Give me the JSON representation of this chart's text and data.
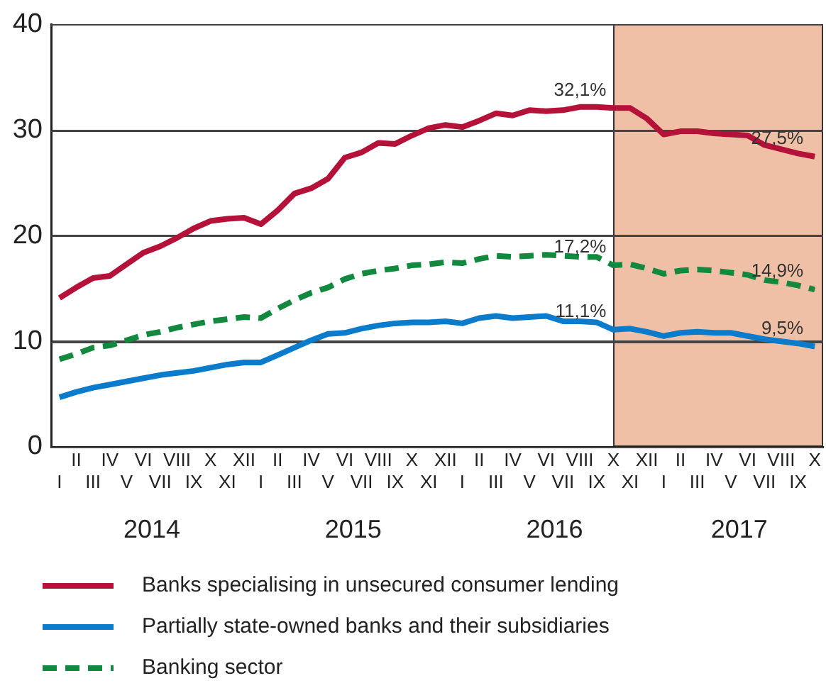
{
  "chart_data": {
    "type": "line",
    "categories": [
      "I",
      "II",
      "III",
      "IV",
      "V",
      "VI",
      "VII",
      "VIII",
      "IX",
      "X",
      "XI",
      "XII",
      "I",
      "II",
      "III",
      "IV",
      "V",
      "VI",
      "VII",
      "VIII",
      "IX",
      "X",
      "XI",
      "XII",
      "I",
      "II",
      "III",
      "IV",
      "V",
      "VI",
      "VII",
      "VIII",
      "IX",
      "X",
      "XI",
      "XII",
      "I",
      "II",
      "III",
      "IV",
      "V",
      "VI",
      "VII",
      "VIII",
      "IX",
      "X"
    ],
    "series": [
      {
        "name": "Banks specialising in unsecured consumer lending",
        "color": "#b5123a",
        "values": [
          14.1,
          15.1,
          16.0,
          16.2,
          17.3,
          18.4,
          19.0,
          19.8,
          20.7,
          21.4,
          21.6,
          21.7,
          21.1,
          22.4,
          24.0,
          24.5,
          25.4,
          27.4,
          27.9,
          28.8,
          28.7,
          29.5,
          30.2,
          30.5,
          30.3,
          30.9,
          31.6,
          31.4,
          31.9,
          31.8,
          31.9,
          32.2,
          32.2,
          32.1,
          32.1,
          31.1,
          29.6,
          29.9,
          29.9,
          29.7,
          29.6,
          29.5,
          28.6,
          28.2,
          27.8,
          27.5
        ],
        "value_labels": [
          null,
          null,
          null,
          null,
          null,
          null,
          null,
          null,
          null,
          null,
          null,
          null,
          null,
          null,
          null,
          null,
          null,
          null,
          null,
          null,
          null,
          null,
          null,
          null,
          null,
          null,
          null,
          null,
          null,
          null,
          null,
          null,
          null,
          "32,1%",
          null,
          null,
          null,
          null,
          null,
          null,
          null,
          null,
          null,
          null,
          null,
          "27,5%"
        ]
      },
      {
        "name": "Partially state-owned banks and their subsidiaries",
        "color": "#0a7ccb",
        "values": [
          4.7,
          5.2,
          5.6,
          5.9,
          6.2,
          6.5,
          6.8,
          7.0,
          7.2,
          7.5,
          7.8,
          8.0,
          8.0,
          8.7,
          9.4,
          10.1,
          10.7,
          10.8,
          11.2,
          11.5,
          11.7,
          11.8,
          11.8,
          11.9,
          11.7,
          12.2,
          12.4,
          12.2,
          12.3,
          12.4,
          11.9,
          11.9,
          11.8,
          11.1,
          11.2,
          10.9,
          10.5,
          10.8,
          10.9,
          10.8,
          10.8,
          10.5,
          10.2,
          10.0,
          9.8,
          9.5
        ],
        "value_labels": [
          null,
          null,
          null,
          null,
          null,
          null,
          null,
          null,
          null,
          null,
          null,
          null,
          null,
          null,
          null,
          null,
          null,
          null,
          null,
          null,
          null,
          null,
          null,
          null,
          null,
          null,
          null,
          null,
          null,
          null,
          null,
          null,
          null,
          "11,1%",
          null,
          null,
          null,
          null,
          null,
          null,
          null,
          null,
          null,
          null,
          null,
          "9,5%"
        ]
      },
      {
        "name": "Banking sector",
        "color": "#12893e",
        "line_style": "dashed",
        "values": [
          8.3,
          8.8,
          9.4,
          9.6,
          10.1,
          10.6,
          10.9,
          11.3,
          11.6,
          11.9,
          12.1,
          12.3,
          12.2,
          13.1,
          13.9,
          14.6,
          15.1,
          15.9,
          16.4,
          16.7,
          16.9,
          17.2,
          17.3,
          17.5,
          17.4,
          17.8,
          18.1,
          18.0,
          18.1,
          18.2,
          18.1,
          18.0,
          18.0,
          17.2,
          17.3,
          16.9,
          16.4,
          16.7,
          16.8,
          16.7,
          16.5,
          16.3,
          15.8,
          15.6,
          15.3,
          14.9
        ],
        "value_labels": [
          null,
          null,
          null,
          null,
          null,
          null,
          null,
          null,
          null,
          null,
          null,
          null,
          null,
          null,
          null,
          null,
          null,
          null,
          null,
          null,
          null,
          null,
          null,
          null,
          null,
          null,
          null,
          null,
          null,
          null,
          null,
          null,
          null,
          "17,2%",
          null,
          null,
          null,
          null,
          null,
          null,
          null,
          null,
          null,
          null,
          null,
          "14,9%"
        ]
      }
    ],
    "ylim": [
      0,
      40
    ],
    "yticks": [
      0,
      10,
      20,
      30,
      40
    ],
    "annotations": [
      "2014",
      "2015",
      "2016",
      "2017"
    ],
    "grid": "y",
    "legend": "bottom",
    "marker": "none",
    "line_style": "solid"
  }
}
